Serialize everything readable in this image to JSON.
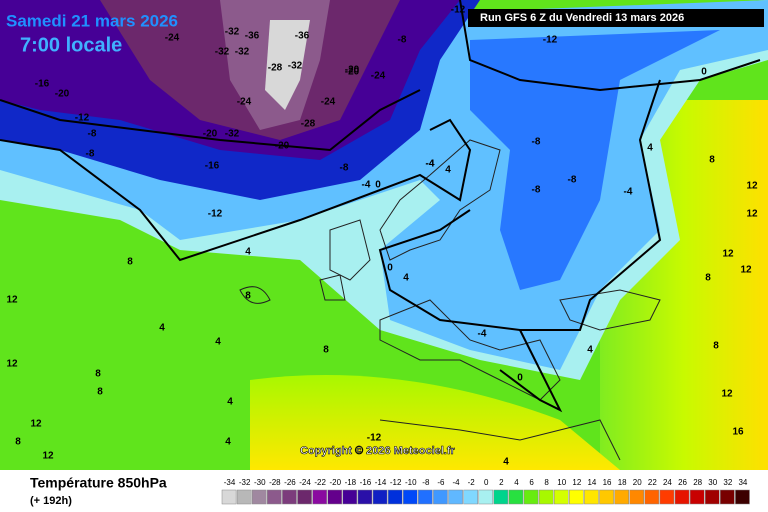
{
  "header": {
    "date": "Samedi 21 mars 2026",
    "time": "7:00 locale",
    "run": "Run GFS 6 Z du Vendredi 13 mars 2026"
  },
  "copyright": "Copyright © 2026 Meteociel.fr",
  "footer": {
    "title": "Température 850hPa",
    "subtitle": "(+ 192h)"
  },
  "legend": {
    "labels": [
      "-34",
      "-32",
      "-30",
      "-28",
      "-26",
      "-24",
      "-22",
      "-20",
      "-18",
      "-16",
      "-14",
      "-12",
      "-10",
      "-8",
      "-6",
      "-4",
      "-2",
      "0",
      "2",
      "4",
      "6",
      "8",
      "10",
      "12",
      "14",
      "16",
      "18",
      "20",
      "22",
      "24",
      "26",
      "28",
      "30",
      "32",
      "34"
    ],
    "colors": [
      "#d8d8d8",
      "#b8b8b8",
      "#a088a0",
      "#8c5a8c",
      "#7c3c7c",
      "#6c286c",
      "#8a0aa0",
      "#64008c",
      "#460096",
      "#2a10a8",
      "#1020c4",
      "#0030dc",
      "#0048f8",
      "#2070ff",
      "#4098ff",
      "#60b8ff",
      "#80d8ff",
      "#a8f0f0",
      "#00d48c",
      "#28e040",
      "#68ec10",
      "#a8f800",
      "#d4ff00",
      "#ffff00",
      "#ffe600",
      "#ffc800",
      "#ffaa00",
      "#ff8800",
      "#ff6400",
      "#ff3c00",
      "#e61400",
      "#c80000",
      "#a00000",
      "#780000",
      "#3c0000"
    ]
  },
  "map_labels": [
    "-24",
    "-32",
    "-32",
    "-32",
    "-36",
    "-28",
    "-32",
    "-36",
    "-24",
    "-28",
    "-20",
    "-20",
    "-24",
    "-24",
    "-16",
    "-20",
    "-12",
    "-8",
    "-8",
    "-20",
    "-32",
    "-20",
    "-16",
    "-8",
    "-4",
    "0",
    "-12",
    "4",
    "8",
    "4",
    "4",
    "4",
    "8",
    "8",
    "4",
    "4",
    "0",
    "-4",
    "-4",
    "4",
    "-8",
    "-8",
    "-8",
    "-4",
    "-12",
    "-8",
    "-12",
    "0",
    "4",
    "8",
    "12",
    "12",
    "12",
    "8",
    "12",
    "4",
    "8",
    "12",
    "16",
    "12",
    "12",
    "-4",
    "0",
    "4",
    "8",
    "8",
    "12",
    "-12",
    "8",
    "12"
  ]
}
